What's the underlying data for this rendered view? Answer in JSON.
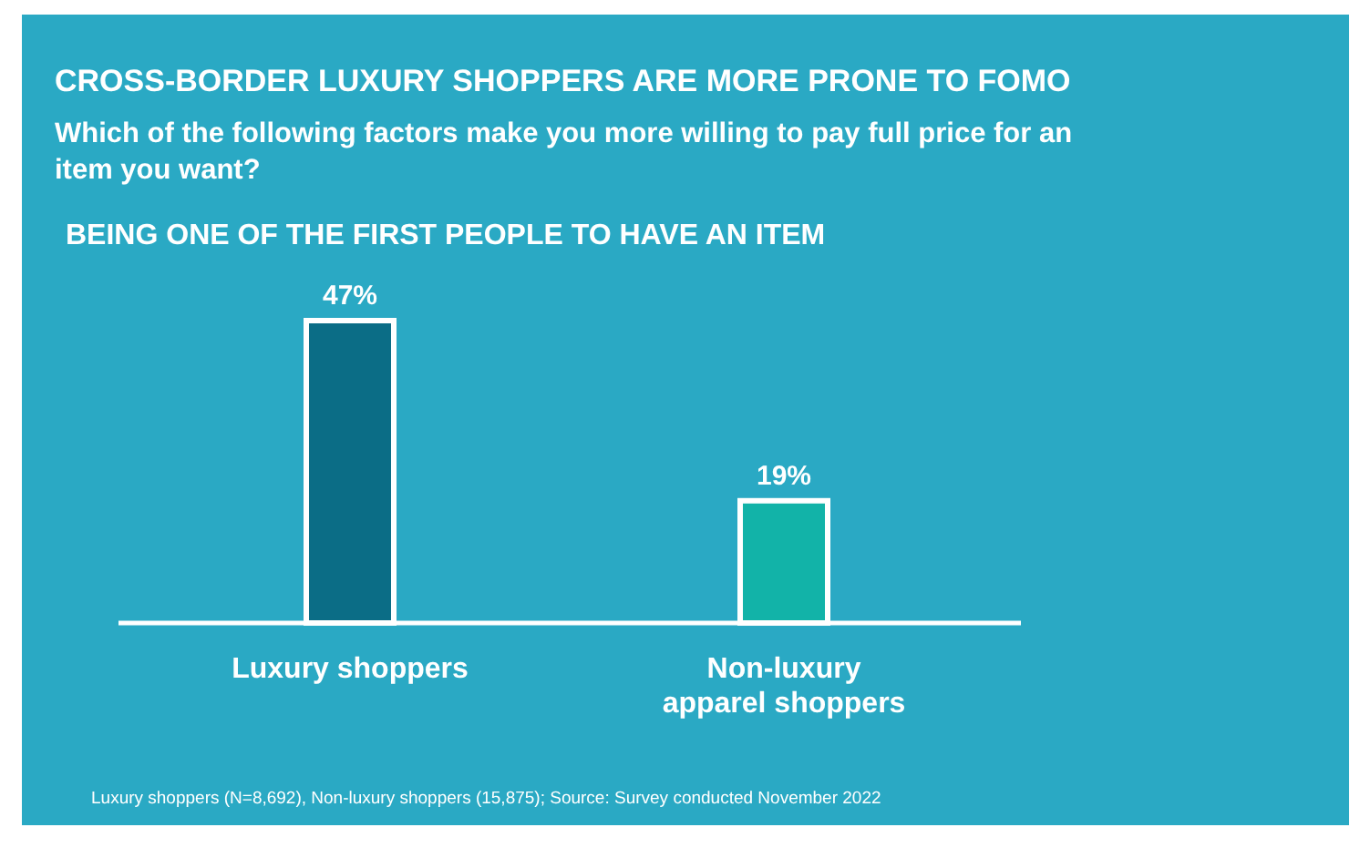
{
  "chart_data": {
    "type": "bar",
    "title": "CROSS-BORDER LUXURY SHOPPERS ARE MORE PRONE TO FOMO",
    "subtitle": "Which of the following factors make you more willing to pay full price for an item you want?",
    "annotations": [
      "BEING ONE OF THE FIRST PEOPLE TO HAVE AN ITEM",
      "Luxury shoppers (N=8,692), Non-luxury shoppers (15,875); Source: Survey conducted November 2022"
    ],
    "categories": [
      "Luxury shoppers",
      "Non-luxury apparel shoppers"
    ],
    "values": [
      47,
      19
    ],
    "colors": [
      "#0b6d86",
      "#12b3a8"
    ],
    "value_labels": [
      "47%",
      "19%"
    ]
  }
}
